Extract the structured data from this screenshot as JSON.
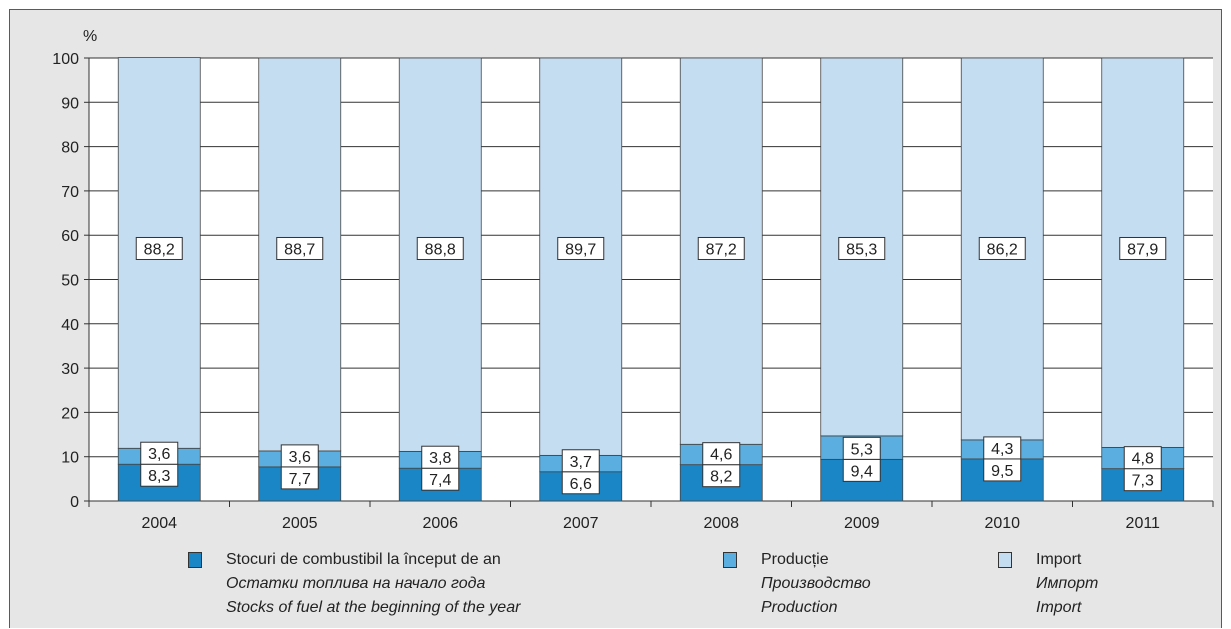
{
  "chart_data": {
    "type": "bar",
    "stacked": true,
    "unit_label": "%",
    "categories": [
      "2004",
      "2005",
      "2006",
      "2007",
      "2008",
      "2009",
      "2010",
      "2011"
    ],
    "series": [
      {
        "name": "Stocuri de combustibil la început de an",
        "values": [
          8.3,
          7.7,
          7.4,
          6.6,
          8.2,
          9.4,
          9.5,
          7.3
        ],
        "color": "#1a86c6"
      },
      {
        "name": "Producție",
        "values": [
          3.6,
          3.6,
          3.8,
          3.7,
          4.6,
          5.3,
          4.3,
          4.8
        ],
        "color": "#5aaee0"
      },
      {
        "name": "Import",
        "values": [
          88.2,
          88.7,
          88.8,
          89.7,
          87.2,
          85.3,
          86.2,
          87.9
        ],
        "color": "#c5ddf1"
      }
    ],
    "yticks": [
      0,
      10,
      20,
      30,
      40,
      50,
      60,
      70,
      80,
      90,
      100
    ],
    "ylim": [
      0,
      100
    ],
    "grid": true
  },
  "legend": [
    {
      "icon": "stocks-swatch",
      "color": "#1a86c6",
      "lines": [
        "Stocuri de combustibil la început de an",
        "Остатки топлива на начало года",
        "Stocks of fuel at the beginning of the year"
      ]
    },
    {
      "icon": "production-swatch",
      "color": "#5aaee0",
      "lines": [
        "Producție",
        "Производство",
        "Production"
      ]
    },
    {
      "icon": "import-swatch",
      "color": "#c5ddf1",
      "lines": [
        "Import",
        "Импорт",
        "Import"
      ]
    }
  ]
}
